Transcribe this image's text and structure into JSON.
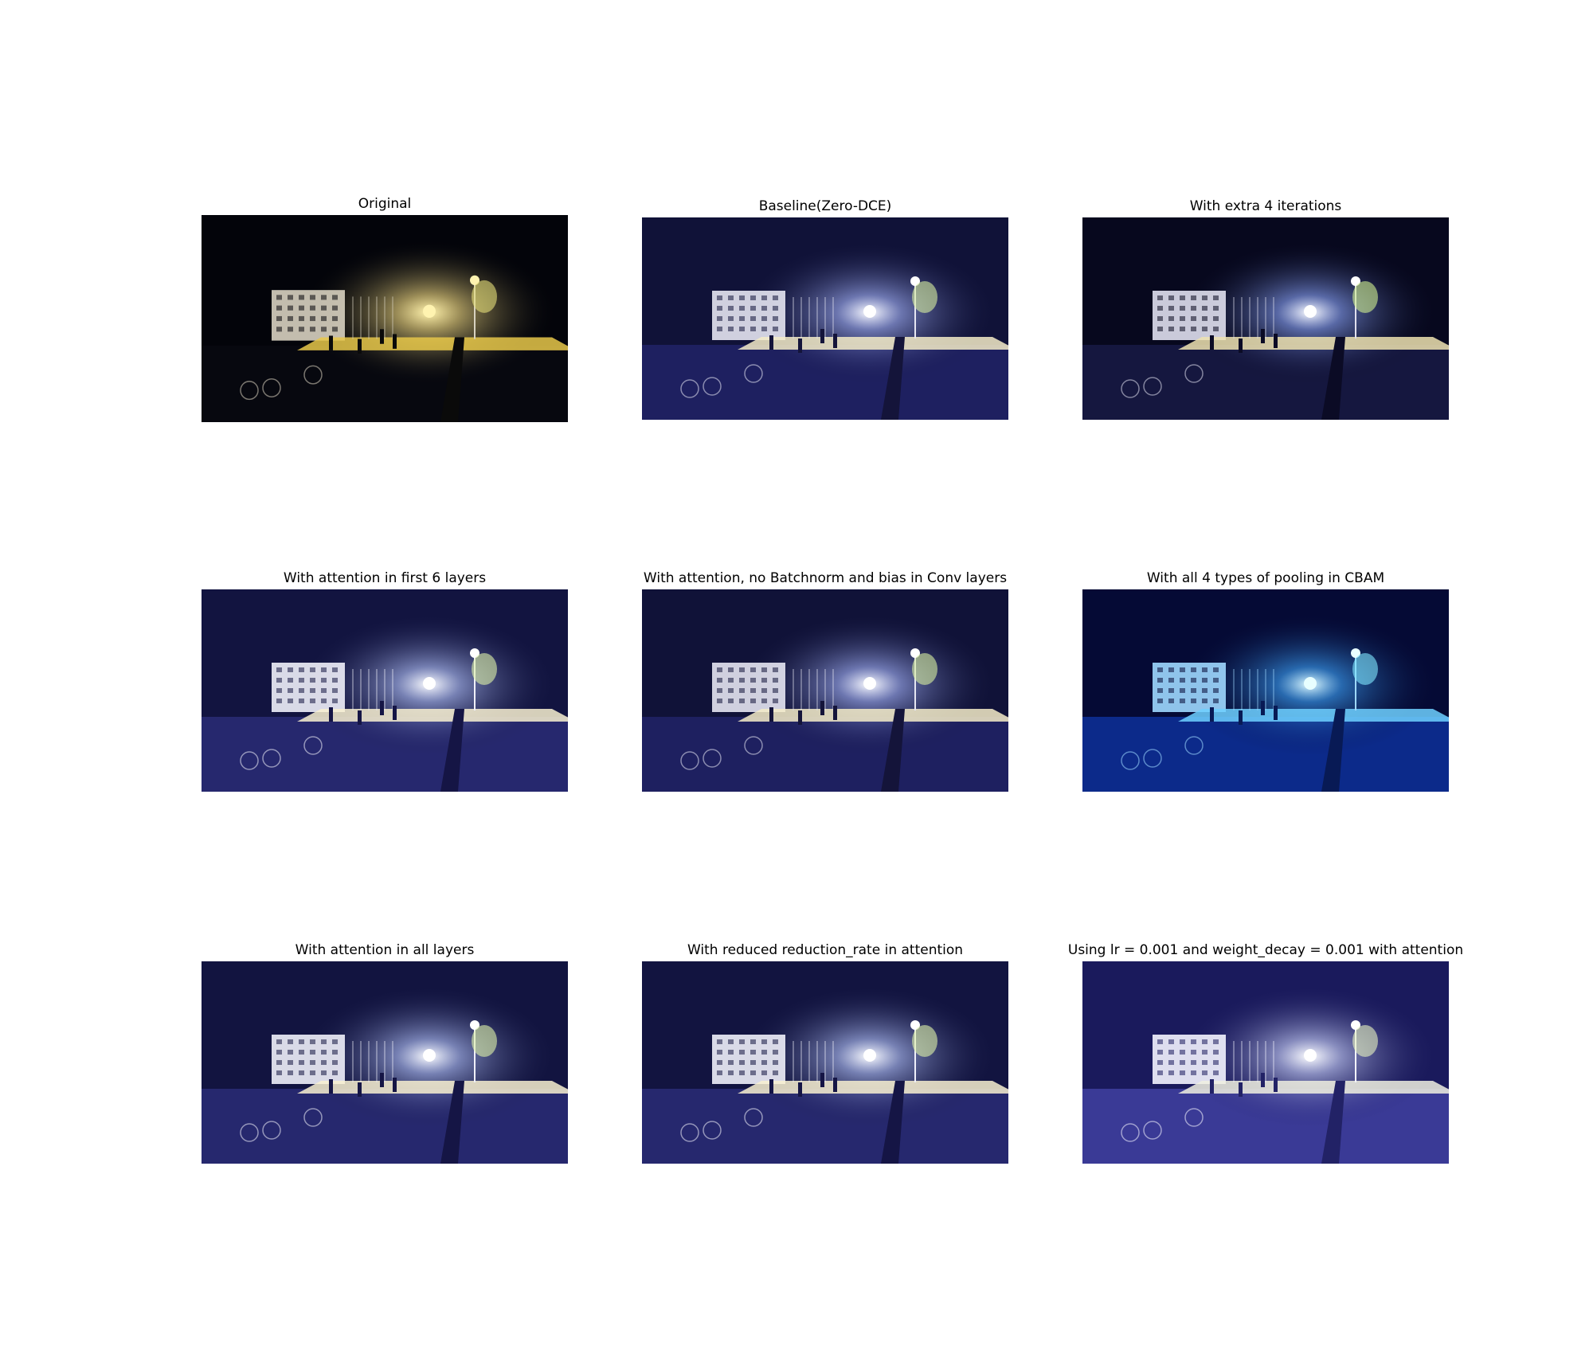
{
  "figure": {
    "panels": [
      {
        "title": "Original",
        "image_icon": "night-basketball-court-photo",
        "tint": "#0b0b12"
      },
      {
        "title": "Baseline(Zero-DCE)",
        "image_icon": "night-basketball-court-photo",
        "tint": "#1a1a55"
      },
      {
        "title": "With extra 4 iterations",
        "image_icon": "night-basketball-court-photo",
        "tint": "#10123a"
      },
      {
        "title": "With attention in first 6 layers",
        "image_icon": "night-basketball-court-photo",
        "tint": "#1c1c5c"
      },
      {
        "title": "With attention, no Batchnorm and bias in Conv layers",
        "image_icon": "night-basketball-court-photo",
        "tint": "#181850"
      },
      {
        "title": "With all 4 types of pooling in CBAM",
        "image_icon": "night-basketball-court-photo",
        "tint": "#0a1d6a"
      },
      {
        "title": "With attention in all layers",
        "image_icon": "night-basketball-court-photo",
        "tint": "#1f1f66"
      },
      {
        "title": "With reduced reduction_rate in attention",
        "image_icon": "night-basketball-court-photo",
        "tint": "#20206a"
      },
      {
        "title": "Using lr = 0.001 and weight_decay = 0.001 with attention",
        "image_icon": "night-basketball-court-photo",
        "tint": "#2a2a7a"
      }
    ]
  }
}
